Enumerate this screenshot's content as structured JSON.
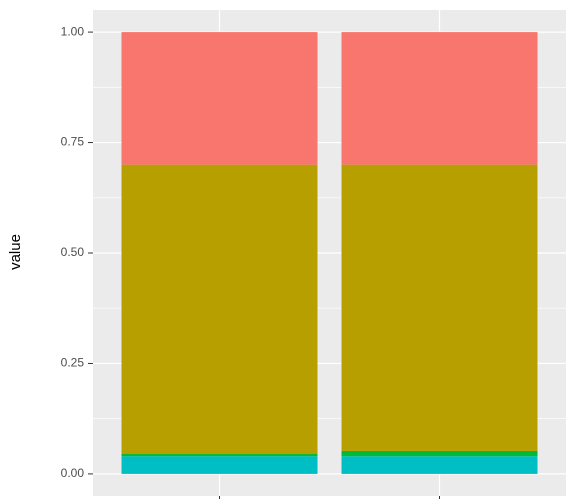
{
  "chart_data": {
    "type": "stacked_bar",
    "y_label": "value",
    "categories": [
      null,
      null
    ],
    "series": [
      {
        "color": "#F8766D",
        "values": [
          0.3,
          0.3
        ]
      },
      {
        "color": "#B79F00",
        "values": [
          0.655,
          0.648
        ]
      },
      {
        "color": "#00BA38",
        "values": [
          0.005,
          0.012
        ]
      },
      {
        "color": "#00BFC4",
        "values": [
          0.04,
          0.04
        ]
      }
    ],
    "ylim": [
      -0.05,
      1.05
    ],
    "yticks": [
      {
        "value": 0,
        "label": "0.00"
      },
      0.25,
      {
        "value": 0.5,
        "label": "0.50"
      },
      0.75,
      {
        "value": 1,
        "label": "1.00"
      }
    ],
    "grid": true
  }
}
